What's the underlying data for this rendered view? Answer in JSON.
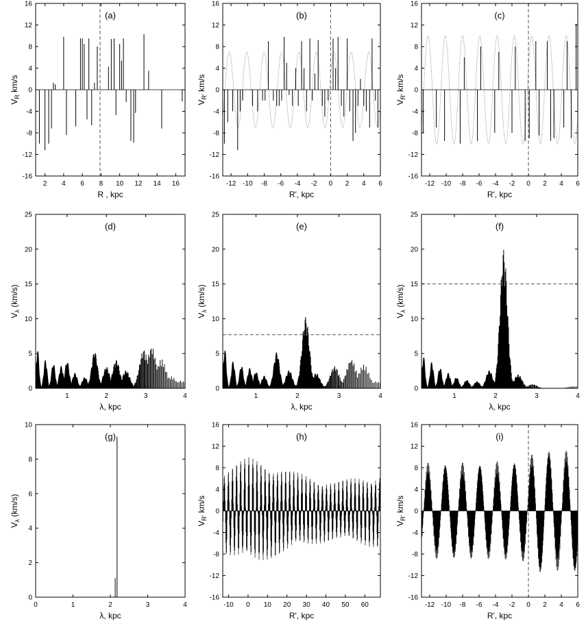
{
  "colors": {
    "axis": "#000000",
    "data": "#000000",
    "refline": "#555555",
    "sine": "#777777"
  },
  "chart_data": [
    {
      "id": "a",
      "type": "bar",
      "panel_label": "(a)",
      "xlabel": "R , kpc",
      "ylabel": "V",
      "ylabel_sub": "R",
      "ylabel_unit": "km/s",
      "xlim": [
        1,
        17
      ],
      "ylim": [
        -16,
        16
      ],
      "xticks": [
        2,
        4,
        6,
        8,
        10,
        12,
        14,
        16
      ],
      "yticks": [
        -16,
        -12,
        -8,
        -4,
        0,
        4,
        8,
        12,
        16
      ],
      "vline": 7.9,
      "x": [
        1.4,
        2.0,
        2.4,
        2.7,
        2.9,
        3.1,
        4.0,
        4.3,
        5.3,
        5.8,
        6.0,
        6.2,
        6.5,
        6.7,
        7.0,
        7.3,
        7.6,
        8.8,
        9.1,
        9.4,
        9.6,
        10.0,
        10.2,
        10.4,
        10.7,
        11.2,
        11.5,
        11.7,
        12.6,
        13.1,
        14.5,
        16.7
      ],
      "values": [
        -10,
        -11.2,
        -10,
        -7.2,
        1.3,
        1,
        9.8,
        -8.4,
        -6.8,
        9.5,
        9.5,
        8.5,
        -5.5,
        9.5,
        -6.6,
        1.3,
        8,
        4.3,
        9.4,
        9.5,
        -4.7,
        8.5,
        5.4,
        9.5,
        -2.3,
        -9.5,
        -9.8,
        -4.3,
        10.3,
        3.5,
        -7.2,
        -2.2
      ]
    },
    {
      "id": "b",
      "type": "bar",
      "panel_label": "(b)",
      "xlabel": "R', kpc",
      "ylabel": "V",
      "ylabel_sub": "R'",
      "ylabel_unit": "km/s",
      "xlim": [
        -13,
        6
      ],
      "ylim": [
        -16,
        16
      ],
      "xticks": [
        -12,
        -10,
        -8,
        -6,
        -4,
        -2,
        0,
        2,
        4,
        6
      ],
      "yticks": [
        -16,
        -12,
        -8,
        -4,
        0,
        4,
        8,
        12,
        16
      ],
      "vline": 0,
      "sine": {
        "amplitude": 7,
        "period": 2.1,
        "phase": 0.4
      },
      "x": [
        -12.8,
        -12.4,
        -11.8,
        -11.2,
        -10.9,
        -10.6,
        -9.4,
        -8.8,
        -8.2,
        -7.9,
        -7.5,
        -6.9,
        -6.5,
        -6.2,
        -5.9,
        -5.6,
        -5.3,
        -5.0,
        -4.6,
        -4.2,
        -3.9,
        -3.5,
        -3.2,
        -2.9,
        -2.5,
        -2.2,
        -1.9,
        -1.5,
        -1.0,
        -0.7,
        -0.3,
        0.3,
        0.6,
        0.9,
        1.3,
        1.6,
        2.0,
        2.3,
        2.7,
        3.0,
        3.3,
        3.6,
        4.0,
        4.3,
        4.7,
        5.0,
        5.4,
        5.7
      ],
      "values": [
        -10,
        -6,
        -4,
        -11.2,
        -4,
        -2,
        -3,
        -4,
        -2,
        -2,
        9,
        -2,
        -3,
        -3,
        -2,
        9.8,
        5,
        -1,
        -3,
        4,
        -3,
        9,
        4,
        -4,
        9.5,
        -2,
        3,
        9.2,
        -3,
        -5,
        -2,
        9.5,
        4,
        9.8,
        -3,
        -5,
        9.5,
        -4,
        -9.5,
        -8,
        -3,
        2,
        -3,
        -4,
        -7,
        9.5,
        -2,
        -7
      ]
    },
    {
      "id": "c",
      "type": "bar",
      "panel_label": "(c)",
      "xlabel": "R', kpc",
      "ylabel": "V",
      "ylabel_sub": "R'",
      "ylabel_unit": "km/s",
      "xlim": [
        -13,
        6
      ],
      "ylim": [
        -16,
        16
      ],
      "xticks": [
        -12,
        -10,
        -8,
        -6,
        -4,
        -2,
        0,
        2,
        4,
        6
      ],
      "yticks": [
        -16,
        -12,
        -8,
        -4,
        0,
        4,
        8,
        12,
        16
      ],
      "vline": 0,
      "sine": {
        "amplitude": 10,
        "period": 2.1,
        "phase": 0.4
      },
      "x": [
        -12.8,
        -11.2,
        -10.2,
        -8.3,
        -7.8,
        -6.2,
        -5.8,
        -4.1,
        -3.6,
        -2.0,
        -1.6,
        -0.4,
        0.1,
        0.9,
        1.3,
        2.3,
        2.7,
        3.1,
        4.3,
        4.7,
        5.2,
        5.8
      ],
      "values": [
        -8,
        -7,
        -9.5,
        -10,
        6,
        -9.5,
        8,
        -8,
        7,
        -8,
        8,
        -9.5,
        -9,
        9,
        -8.5,
        9,
        -9.5,
        -9,
        -7,
        9,
        -9,
        12.2
      ]
    },
    {
      "id": "d",
      "type": "bar",
      "panel_label": "(d)",
      "xlabel": "λ, kpc",
      "ylabel": "V",
      "ylabel_sub": "λ",
      "ylabel_unit": "(km/s)",
      "xlim": [
        0.2,
        4
      ],
      "ylim": [
        0,
        25
      ],
      "xticks": [
        1,
        2,
        3,
        4
      ],
      "yticks": [
        0,
        5,
        10,
        15,
        20,
        25
      ],
      "peaks": [
        [
          0.25,
          5.5
        ],
        [
          0.45,
          4.1
        ],
        [
          0.65,
          3.6
        ],
        [
          0.85,
          3.2
        ],
        [
          1.0,
          3.9
        ],
        [
          1.2,
          2.2
        ],
        [
          1.45,
          1.6
        ],
        [
          1.7,
          5.3
        ],
        [
          2.0,
          3.1
        ],
        [
          2.25,
          4.1
        ],
        [
          2.5,
          2.6
        ],
        [
          2.95,
          5.6
        ],
        [
          3.15,
          6.0
        ],
        [
          3.4,
          4.2
        ],
        [
          3.65,
          1.7
        ],
        [
          3.9,
          1.1
        ]
      ]
    },
    {
      "id": "e",
      "type": "bar",
      "panel_label": "(e)",
      "xlabel": "λ, kpc",
      "ylabel": "V",
      "ylabel_sub": "λ",
      "ylabel_unit": "(km/s)",
      "xlim": [
        0.2,
        4
      ],
      "ylim": [
        0,
        25
      ],
      "xticks": [
        1,
        2,
        3,
        4
      ],
      "yticks": [
        0,
        5,
        10,
        15,
        20,
        25
      ],
      "hline": 7.7,
      "peaks": [
        [
          0.25,
          5.6
        ],
        [
          0.45,
          3.9
        ],
        [
          0.65,
          3.3
        ],
        [
          0.85,
          2.9
        ],
        [
          1.0,
          2.4
        ],
        [
          1.2,
          1.8
        ],
        [
          1.5,
          5.2
        ],
        [
          1.8,
          2.6
        ],
        [
          2.2,
          10.3
        ],
        [
          2.45,
          2.2
        ],
        [
          2.9,
          3.2
        ],
        [
          3.3,
          4.2
        ],
        [
          3.6,
          3.4
        ],
        [
          3.9,
          1.0
        ]
      ]
    },
    {
      "id": "f",
      "type": "bar",
      "panel_label": "(f)",
      "xlabel": "λ, kpc",
      "ylabel": "V",
      "ylabel_sub": "λ",
      "ylabel_unit": "(km/s)",
      "xlim": [
        0.2,
        4
      ],
      "ylim": [
        0,
        25
      ],
      "xticks": [
        1,
        2,
        3,
        4
      ],
      "yticks": [
        0,
        5,
        10,
        15,
        20,
        25
      ],
      "hline": 15,
      "peaks": [
        [
          0.25,
          4.6
        ],
        [
          0.45,
          3.8
        ],
        [
          0.65,
          3.0
        ],
        [
          0.85,
          2.2
        ],
        [
          1.05,
          1.6
        ],
        [
          1.3,
          1.2
        ],
        [
          1.55,
          1.0
        ],
        [
          1.85,
          2.6
        ],
        [
          2.2,
          20.0
        ],
        [
          2.55,
          2.0
        ],
        [
          2.9,
          0.6
        ],
        [
          3.9,
          0.3
        ]
      ]
    },
    {
      "id": "g",
      "type": "bar",
      "panel_label": "(g)",
      "xlabel": "λ, kpc",
      "ylabel": "V",
      "ylabel_sub": "λ",
      "ylabel_unit": "(km/s)",
      "xlim": [
        0,
        4
      ],
      "ylim": [
        0,
        10
      ],
      "xticks": [
        0,
        1,
        2,
        3,
        4
      ],
      "yticks": [
        0,
        2,
        4,
        6,
        8,
        10
      ],
      "x": [
        2.13,
        2.18
      ],
      "values": [
        1.1,
        9.3
      ]
    },
    {
      "id": "h",
      "type": "bar",
      "panel_label": "(h)",
      "xlabel": "R', kpc",
      "ylabel": "V",
      "ylabel_sub": "R'",
      "ylabel_unit": "km/s",
      "xlim": [
        -13,
        68
      ],
      "ylim": [
        -16,
        16
      ],
      "xticks": [
        -10,
        0,
        10,
        20,
        30,
        40,
        50,
        60
      ],
      "yticks": [
        -16,
        -12,
        -8,
        -4,
        0,
        4,
        8,
        12,
        16
      ],
      "sine": {
        "amplitude": 8,
        "period": 2.1,
        "phase": 0.4
      },
      "envelope": [
        [
          -13,
          8
        ],
        [
          0,
          10
        ],
        [
          5,
          9.8
        ],
        [
          15,
          8.5
        ],
        [
          25,
          7.2
        ],
        [
          35,
          6.2
        ],
        [
          45,
          5.6
        ],
        [
          55,
          6.2
        ],
        [
          68,
          7
        ]
      ]
    },
    {
      "id": "i",
      "type": "bar",
      "panel_label": "(i)",
      "xlabel": "R', kpc",
      "ylabel": "V",
      "ylabel_sub": "R'",
      "ylabel_unit": "km/s",
      "xlim": [
        -13,
        6
      ],
      "ylim": [
        -16,
        16
      ],
      "xticks": [
        -12,
        -10,
        -8,
        -6,
        -4,
        -2,
        0,
        2,
        4,
        6
      ],
      "yticks": [
        -16,
        -12,
        -8,
        -4,
        0,
        4,
        8,
        12,
        16
      ],
      "vline": 0,
      "sine": {
        "amplitude": 9,
        "period": 2.1,
        "phase": 0.4
      },
      "envelope": [
        [
          -13,
          9
        ],
        [
          -6,
          9
        ],
        [
          0,
          9.5
        ],
        [
          1,
          12
        ],
        [
          4,
          11
        ],
        [
          6,
          12
        ]
      ]
    }
  ]
}
